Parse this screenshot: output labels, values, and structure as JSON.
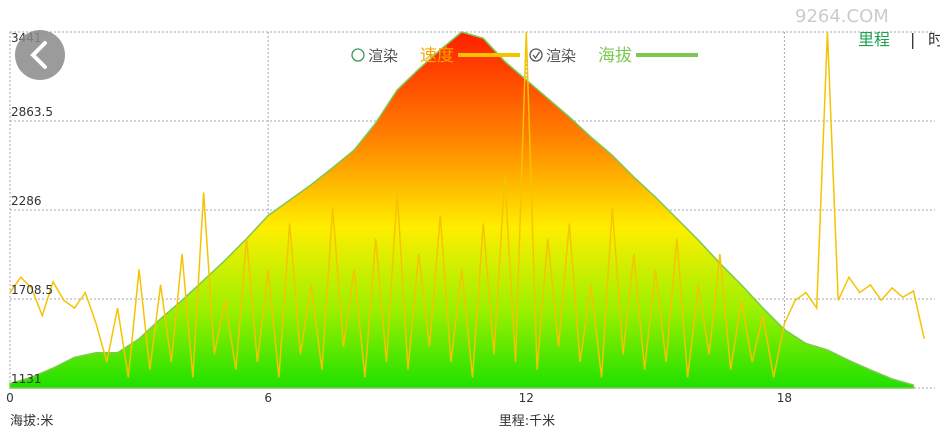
{
  "chart_data": {
    "type": "line",
    "watermark": "9264.COM",
    "x_label": "里程:千米",
    "y_label": "海拔:米",
    "render_label": "渲染",
    "x_mode_tabs": [
      "里程",
      "时"
    ],
    "xlim": [
      0,
      21.5
    ],
    "xticks": [
      0,
      6,
      12,
      18
    ],
    "ylim": [
      1131,
      3441
    ],
    "yticks": [
      1131,
      1708.5,
      2286,
      2863.5,
      3441
    ],
    "grid": true,
    "series": [
      {
        "name": "速度",
        "color": "#f5c400",
        "label_color": "#f5a500",
        "rendered": false,
        "kind": "line",
        "x": [
          0,
          0.25,
          0.5,
          0.75,
          1,
          1.25,
          1.5,
          1.75,
          2,
          2.25,
          2.5,
          2.75,
          3,
          3.25,
          3.5,
          3.75,
          4,
          4.25,
          4.5,
          4.75,
          5,
          5.25,
          5.5,
          5.75,
          6,
          6.25,
          6.5,
          6.75,
          7,
          7.25,
          7.5,
          7.75,
          8,
          8.25,
          8.5,
          8.75,
          9,
          9.25,
          9.5,
          9.75,
          10,
          10.25,
          10.5,
          10.75,
          11,
          11.25,
          11.5,
          11.75,
          12,
          12.25,
          12.5,
          12.75,
          13,
          13.25,
          13.5,
          13.75,
          14,
          14.25,
          14.5,
          14.75,
          15,
          15.25,
          15.5,
          15.75,
          16,
          16.25,
          16.5,
          16.75,
          17,
          17.25,
          17.5,
          17.75,
          18,
          18.25,
          18.5,
          18.75,
          19,
          19.25,
          19.5,
          19.75,
          20,
          20.25,
          20.5,
          20.75,
          21,
          21.25
        ],
        "values": [
          1750,
          1850,
          1780,
          1600,
          1820,
          1700,
          1650,
          1750,
          1550,
          1300,
          1650,
          1200,
          1900,
          1250,
          1800,
          1300,
          2000,
          1200,
          2400,
          1350,
          1700,
          1250,
          2100,
          1300,
          1900,
          1200,
          2200,
          1350,
          1800,
          1250,
          2300,
          1400,
          1900,
          1200,
          2100,
          1300,
          2400,
          1250,
          2000,
          1400,
          2250,
          1300,
          1900,
          1200,
          2200,
          1350,
          2500,
          1300,
          3441,
          1250,
          2100,
          1400,
          2200,
          1300,
          1800,
          1200,
          2300,
          1350,
          2000,
          1250,
          1900,
          1300,
          2100,
          1200,
          1800,
          1350,
          2000,
          1250,
          1700,
          1300,
          1600,
          1200,
          1550,
          1700,
          1750,
          1650,
          3441,
          1700,
          1850,
          1750,
          1800,
          1700,
          1780,
          1720,
          1760,
          1450
        ]
      },
      {
        "name": "海拔",
        "color": "#7cc850",
        "label_color": "#7cc850",
        "rendered": true,
        "kind": "area",
        "x": [
          0,
          0.5,
          1,
          1.5,
          2,
          2.5,
          3,
          3.5,
          4,
          4.5,
          5,
          5.5,
          6,
          6.5,
          7,
          7.5,
          8,
          8.5,
          9,
          9.5,
          10,
          10.5,
          11,
          11.5,
          12,
          12.5,
          13,
          13.5,
          14,
          14.5,
          15,
          15.5,
          16,
          16.5,
          17,
          17.5,
          18,
          18.5,
          19,
          19.5,
          20,
          20.5,
          21
        ],
        "values": [
          1160,
          1200,
          1260,
          1330,
          1360,
          1360,
          1450,
          1580,
          1700,
          1830,
          1960,
          2100,
          2250,
          2350,
          2450,
          2560,
          2675,
          2850,
          3065,
          3200,
          3325,
          3441,
          3400,
          3250,
          3130,
          3010,
          2890,
          2760,
          2640,
          2500,
          2370,
          2230,
          2090,
          1940,
          1800,
          1650,
          1510,
          1420,
          1378,
          1310,
          1248,
          1190,
          1150
        ]
      }
    ]
  }
}
